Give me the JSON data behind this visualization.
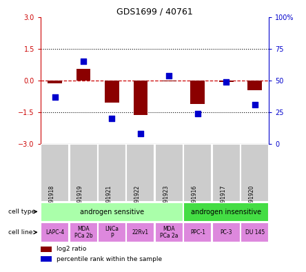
{
  "title": "GDS1699 / 40761",
  "samples": [
    "GSM91918",
    "GSM91919",
    "GSM91921",
    "GSM91922",
    "GSM91923",
    "GSM91916",
    "GSM91917",
    "GSM91920"
  ],
  "log2_ratio": [
    -0.15,
    0.55,
    -1.05,
    -1.65,
    -0.05,
    -1.1,
    -0.08,
    -0.45
  ],
  "percentile_rank": [
    37,
    65,
    20,
    8,
    54,
    24,
    49,
    31
  ],
  "ylim_left": [
    -3,
    3
  ],
  "ylim_right": [
    0,
    100
  ],
  "yticks_left": [
    -3,
    -1.5,
    0,
    1.5,
    3
  ],
  "yticks_right": [
    0,
    25,
    50,
    75,
    100
  ],
  "cell_type_groups": [
    {
      "label": "androgen sensitive",
      "start": 0,
      "end": 5,
      "color": "#AAFFAA"
    },
    {
      "label": "androgen insensitive",
      "start": 5,
      "end": 8,
      "color": "#44DD44"
    }
  ],
  "cell_lines": [
    {
      "label": "LAPC-4",
      "start": 0,
      "end": 1
    },
    {
      "label": "MDA\nPCa 2b",
      "start": 1,
      "end": 2
    },
    {
      "label": "LNCa\nP",
      "start": 2,
      "end": 3
    },
    {
      "label": "22Rv1",
      "start": 3,
      "end": 4
    },
    {
      "label": "MDA\nPCa 2a",
      "start": 4,
      "end": 5
    },
    {
      "label": "PPC-1",
      "start": 5,
      "end": 6
    },
    {
      "label": "PC-3",
      "start": 6,
      "end": 7
    },
    {
      "label": "DU 145",
      "start": 7,
      "end": 8
    }
  ],
  "bar_color": "#8B0000",
  "dot_color": "#0000CC",
  "sample_box_color": "#CCCCCC",
  "sample_box_edge": "#AAAAAA",
  "cell_line_color": "#DD88DD",
  "left_axis_color": "#CC0000",
  "right_axis_color": "#0000CC",
  "bar_width": 0.5,
  "dot_size": 30,
  "n": 8
}
